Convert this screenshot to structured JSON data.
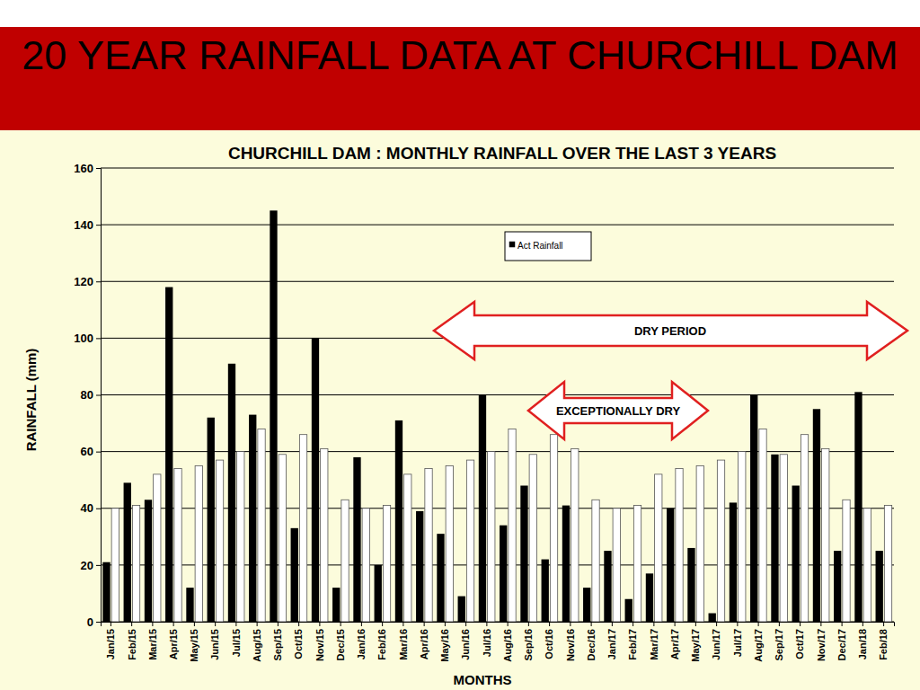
{
  "header": {
    "title": "20 YEAR RAINFALL DATA AT CHURCHILL DAM"
  },
  "chart_data": {
    "type": "bar",
    "title": "CHURCHILL DAM : MONTHLY RAINFALL OVER THE LAST 3 YEARS",
    "x_label": "MONTHS",
    "y_label": "RAINFALL (mm)",
    "categories": [
      "Jan/15",
      "Feb/15",
      "Mar/15",
      "Apr/15",
      "May/15",
      "Jun/15",
      "Jul/15",
      "Aug/15",
      "Sep/15",
      "Oct/15",
      "Nov/15",
      "Dec/15",
      "Jan/16",
      "Feb/16",
      "Mar/16",
      "Apr/16",
      "May/16",
      "Jun/16",
      "Jul/16",
      "Aug/16",
      "Sep/16",
      "Oct/16",
      "Nov/16",
      "Dec/16",
      "Jan/17",
      "Feb/17",
      "Mar/17",
      "Apr/17",
      "May/17",
      "Jun/17",
      "Jul/17",
      "Aug/17",
      "Sep/17",
      "Oct/17",
      "Nov/17",
      "Dec/17",
      "Jan/18",
      "Feb/18"
    ],
    "series": [
      {
        "name": "Act Rainfall",
        "color": "#000000",
        "values": [
          21,
          49,
          43,
          118,
          12,
          72,
          91,
          73,
          145,
          33,
          100,
          12,
          58,
          20,
          71,
          39,
          31,
          9,
          80,
          34,
          48,
          22,
          41,
          12,
          25,
          8,
          17,
          40,
          26,
          3,
          42,
          80,
          59,
          48,
          75,
          25,
          81,
          25
        ]
      },
      {
        "color": "#ffffff",
        "values": [
          40,
          41,
          52,
          54,
          55,
          57,
          60,
          68,
          59,
          66,
          61,
          43,
          40,
          41,
          52,
          54,
          55,
          57,
          60,
          68,
          59,
          66,
          61,
          43,
          40,
          41,
          52,
          54,
          55,
          57,
          60,
          68,
          59,
          66,
          61,
          43,
          40,
          41
        ]
      }
    ],
    "annotations": [
      {
        "text": "DRY PERIOD"
      },
      {
        "text": "EXCEPTIONALLY DRY"
      }
    ],
    "ylim": [
      0,
      160
    ],
    "yticks": [
      0,
      20,
      40,
      60,
      80,
      100,
      120,
      140,
      160
    ],
    "grid": true
  }
}
